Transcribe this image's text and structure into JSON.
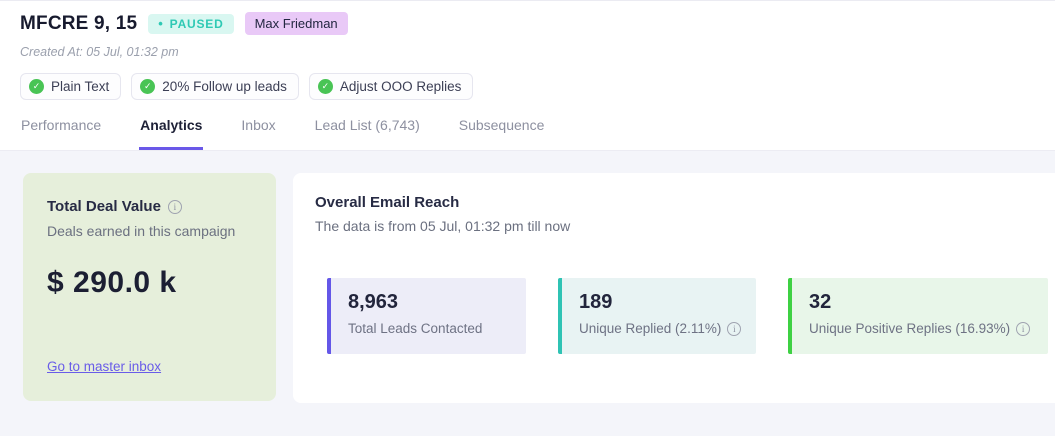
{
  "header": {
    "title": "MFCRE 9, 15",
    "status_badge": {
      "dot": "•",
      "label": "PAUSED",
      "bg": "#d9f7f1",
      "color": "#2ec9b4"
    },
    "owner_badge": {
      "label": "Max Friedman",
      "bg": "#e9c9f7",
      "color": "#232741"
    },
    "created_at": "Created At: 05 Jul, 01:32 pm",
    "chips": [
      {
        "icon": "check-icon",
        "label": "Plain Text"
      },
      {
        "icon": "check-icon",
        "label": "20% Follow up leads"
      },
      {
        "icon": "check-icon",
        "label": "Adjust OOO Replies"
      }
    ],
    "tabs": [
      {
        "label": "Performance",
        "active": false
      },
      {
        "label": "Analytics",
        "active": true
      },
      {
        "label": "Inbox",
        "active": false
      },
      {
        "label": "Lead List (6,743)",
        "active": false
      },
      {
        "label": "Subsequence",
        "active": false
      }
    ],
    "active_tab_accent": "#6a58e8"
  },
  "deal_card": {
    "title": "Total Deal Value",
    "info_glyph": "i",
    "subtitle": "Deals earned in this campaign",
    "value": "$ 290.0 k",
    "link_label": "Go to master inbox",
    "bg": "#e6efdb",
    "link_color": "#695ce8"
  },
  "reach_panel": {
    "title": "Overall Email Reach",
    "subtitle": "The data is from 05 Jul, 01:32 pm till now",
    "stats": [
      {
        "value": "8,963",
        "label": "Total Leads Contacted",
        "has_info": false,
        "accent": "#6457e8",
        "bg": "#ededf8"
      },
      {
        "value": "189",
        "label": "Unique Replied (2.11%)",
        "has_info": true,
        "accent": "#2fc3b4",
        "bg": "#e8f3f3"
      },
      {
        "value": "32",
        "label": "Unique Positive Replies (16.93%)",
        "has_info": true,
        "accent": "#3ed143",
        "bg": "#e8f6e9"
      }
    ],
    "info_glyph": "i"
  },
  "icons": {
    "check": "✓",
    "info": "i"
  }
}
